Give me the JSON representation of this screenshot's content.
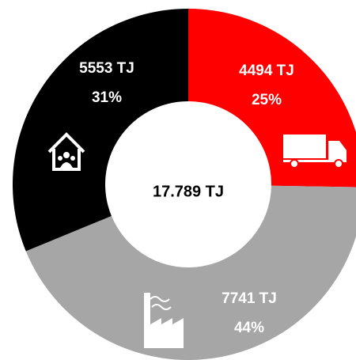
{
  "chart_data": {
    "type": "donut",
    "values": [
      4494,
      7741,
      5553
    ],
    "value_labels": [
      "4494 TJ",
      "7741 TJ",
      "5553 TJ"
    ],
    "percents": [
      25,
      44,
      31
    ],
    "percent_labels": [
      "25%",
      "44%",
      "31%"
    ],
    "colors": [
      "#ff0000",
      "#a6a6a6",
      "#000000"
    ],
    "center_label": "17.789 TJ"
  }
}
